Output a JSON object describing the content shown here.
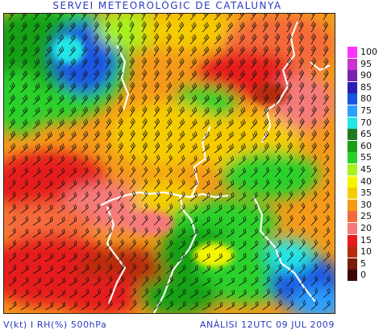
{
  "title": "SERVEI METEOROLÒGIC DE CATALUNYA",
  "footer": {
    "left": "V(kt) I RH(%) 500hPa",
    "right": "ANÀLISI 12UTC 09 JUL 2009"
  },
  "legend": [
    {
      "label": "100",
      "color": "#ff33ff"
    },
    {
      "label": "95",
      "color": "#cc33cc"
    },
    {
      "label": "90",
      "color": "#7a1fb0"
    },
    {
      "label": "85",
      "color": "#2a1fb0"
    },
    {
      "label": "80",
      "color": "#1a55e0"
    },
    {
      "label": "75",
      "color": "#2aa0ff"
    },
    {
      "label": "70",
      "color": "#22e6e6"
    },
    {
      "label": "65",
      "color": "#1f7a1f"
    },
    {
      "label": "60",
      "color": "#17a017"
    },
    {
      "label": "55",
      "color": "#2ad12a"
    },
    {
      "label": "45",
      "color": "#a6f21a"
    },
    {
      "label": "40",
      "color": "#f5f500"
    },
    {
      "label": "35",
      "color": "#f5cc00"
    },
    {
      "label": "30",
      "color": "#f59a1a"
    },
    {
      "label": "25",
      "color": "#f56a3a"
    },
    {
      "label": "20",
      "color": "#f57a7a"
    },
    {
      "label": "15",
      "color": "#e61a1a"
    },
    {
      "label": "10",
      "color": "#b82a0a"
    },
    {
      "label": "5",
      "color": "#7a1a0a"
    },
    {
      "label": "0",
      "color": "#3d0808"
    }
  ]
}
